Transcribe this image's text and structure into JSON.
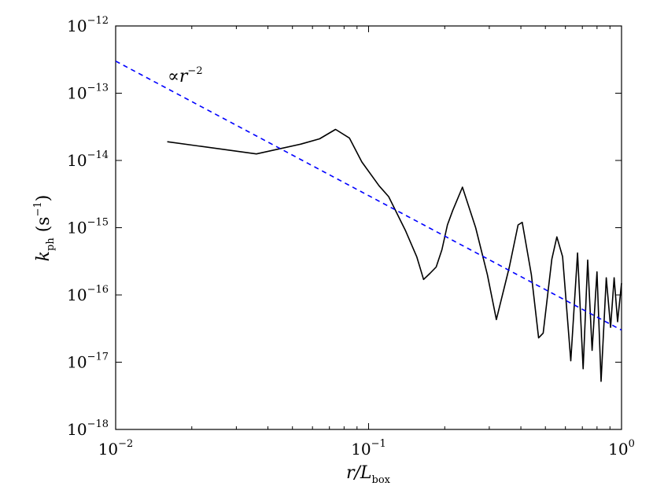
{
  "chart_data": {
    "type": "line",
    "xlabel": {
      "main": "r/L",
      "sub": "box"
    },
    "ylabel": {
      "main": "k",
      "sub": "ph",
      "unit_open": " (s",
      "unit_exp": "−1",
      "unit_close": ")"
    },
    "xscale": "log",
    "yscale": "log",
    "xlim": [
      0.01,
      1
    ],
    "ylim": [
      1e-18,
      1e-12
    ],
    "grid": false,
    "x_ticks": [
      {
        "value": 0.01,
        "base": "10",
        "exp": "−2"
      },
      {
        "value": 0.1,
        "base": "10",
        "exp": "−1"
      },
      {
        "value": 1,
        "base": "10",
        "exp": "0"
      }
    ],
    "y_ticks": [
      {
        "value": 1e-18,
        "base": "10",
        "exp": "−18"
      },
      {
        "value": 1e-17,
        "base": "10",
        "exp": "−17"
      },
      {
        "value": 1e-16,
        "base": "10",
        "exp": "−16"
      },
      {
        "value": 1e-15,
        "base": "10",
        "exp": "−15"
      },
      {
        "value": 1e-14,
        "base": "10",
        "exp": "−14"
      },
      {
        "value": 1e-13,
        "base": "10",
        "exp": "−13"
      },
      {
        "value": 1e-12,
        "base": "10",
        "exp": "−12"
      }
    ],
    "annotation": {
      "prefix": "∝",
      "var": "r",
      "exp": "−2"
    },
    "series": [
      {
        "color": "#000000",
        "style": "solid",
        "x": [
          0.016,
          0.036,
          0.054,
          0.064,
          0.074,
          0.084,
          0.094,
          0.11,
          0.12,
          0.14,
          0.155,
          0.165,
          0.175,
          0.185,
          0.195,
          0.205,
          0.215,
          0.235,
          0.265,
          0.295,
          0.32,
          0.36,
          0.39,
          0.405,
          0.44,
          0.47,
          0.49,
          0.53,
          0.555,
          0.585,
          0.63,
          0.67,
          0.705,
          0.735,
          0.765,
          0.8,
          0.83,
          0.87,
          0.905,
          0.935,
          0.965,
          1.0
        ],
        "y": [
          1.9e-14,
          1.25e-14,
          1.75e-14,
          2.1e-14,
          2.9e-14,
          2.15e-14,
          9.5e-15,
          4.2e-15,
          2.9e-15,
          9e-16,
          3.7e-16,
          1.7e-16,
          2.1e-16,
          2.6e-16,
          4.7e-16,
          1.1e-15,
          1.8e-15,
          4e-15,
          1e-15,
          2e-16,
          4.3e-17,
          2.6e-16,
          1.1e-15,
          1.2e-15,
          2e-16,
          2.3e-17,
          2.7e-17,
          3.4e-16,
          7.3e-16,
          3.7e-16,
          1.05e-17,
          4.2e-16,
          8e-18,
          3.3e-16,
          1.5e-17,
          2.2e-16,
          5.2e-18,
          1.8e-16,
          3.3e-17,
          1.8e-16,
          4e-17,
          1.5e-16
        ]
      },
      {
        "color": "#0000ff",
        "style": "dashed",
        "x": [
          0.01,
          1
        ],
        "y": [
          3e-13,
          3e-17
        ]
      }
    ]
  }
}
